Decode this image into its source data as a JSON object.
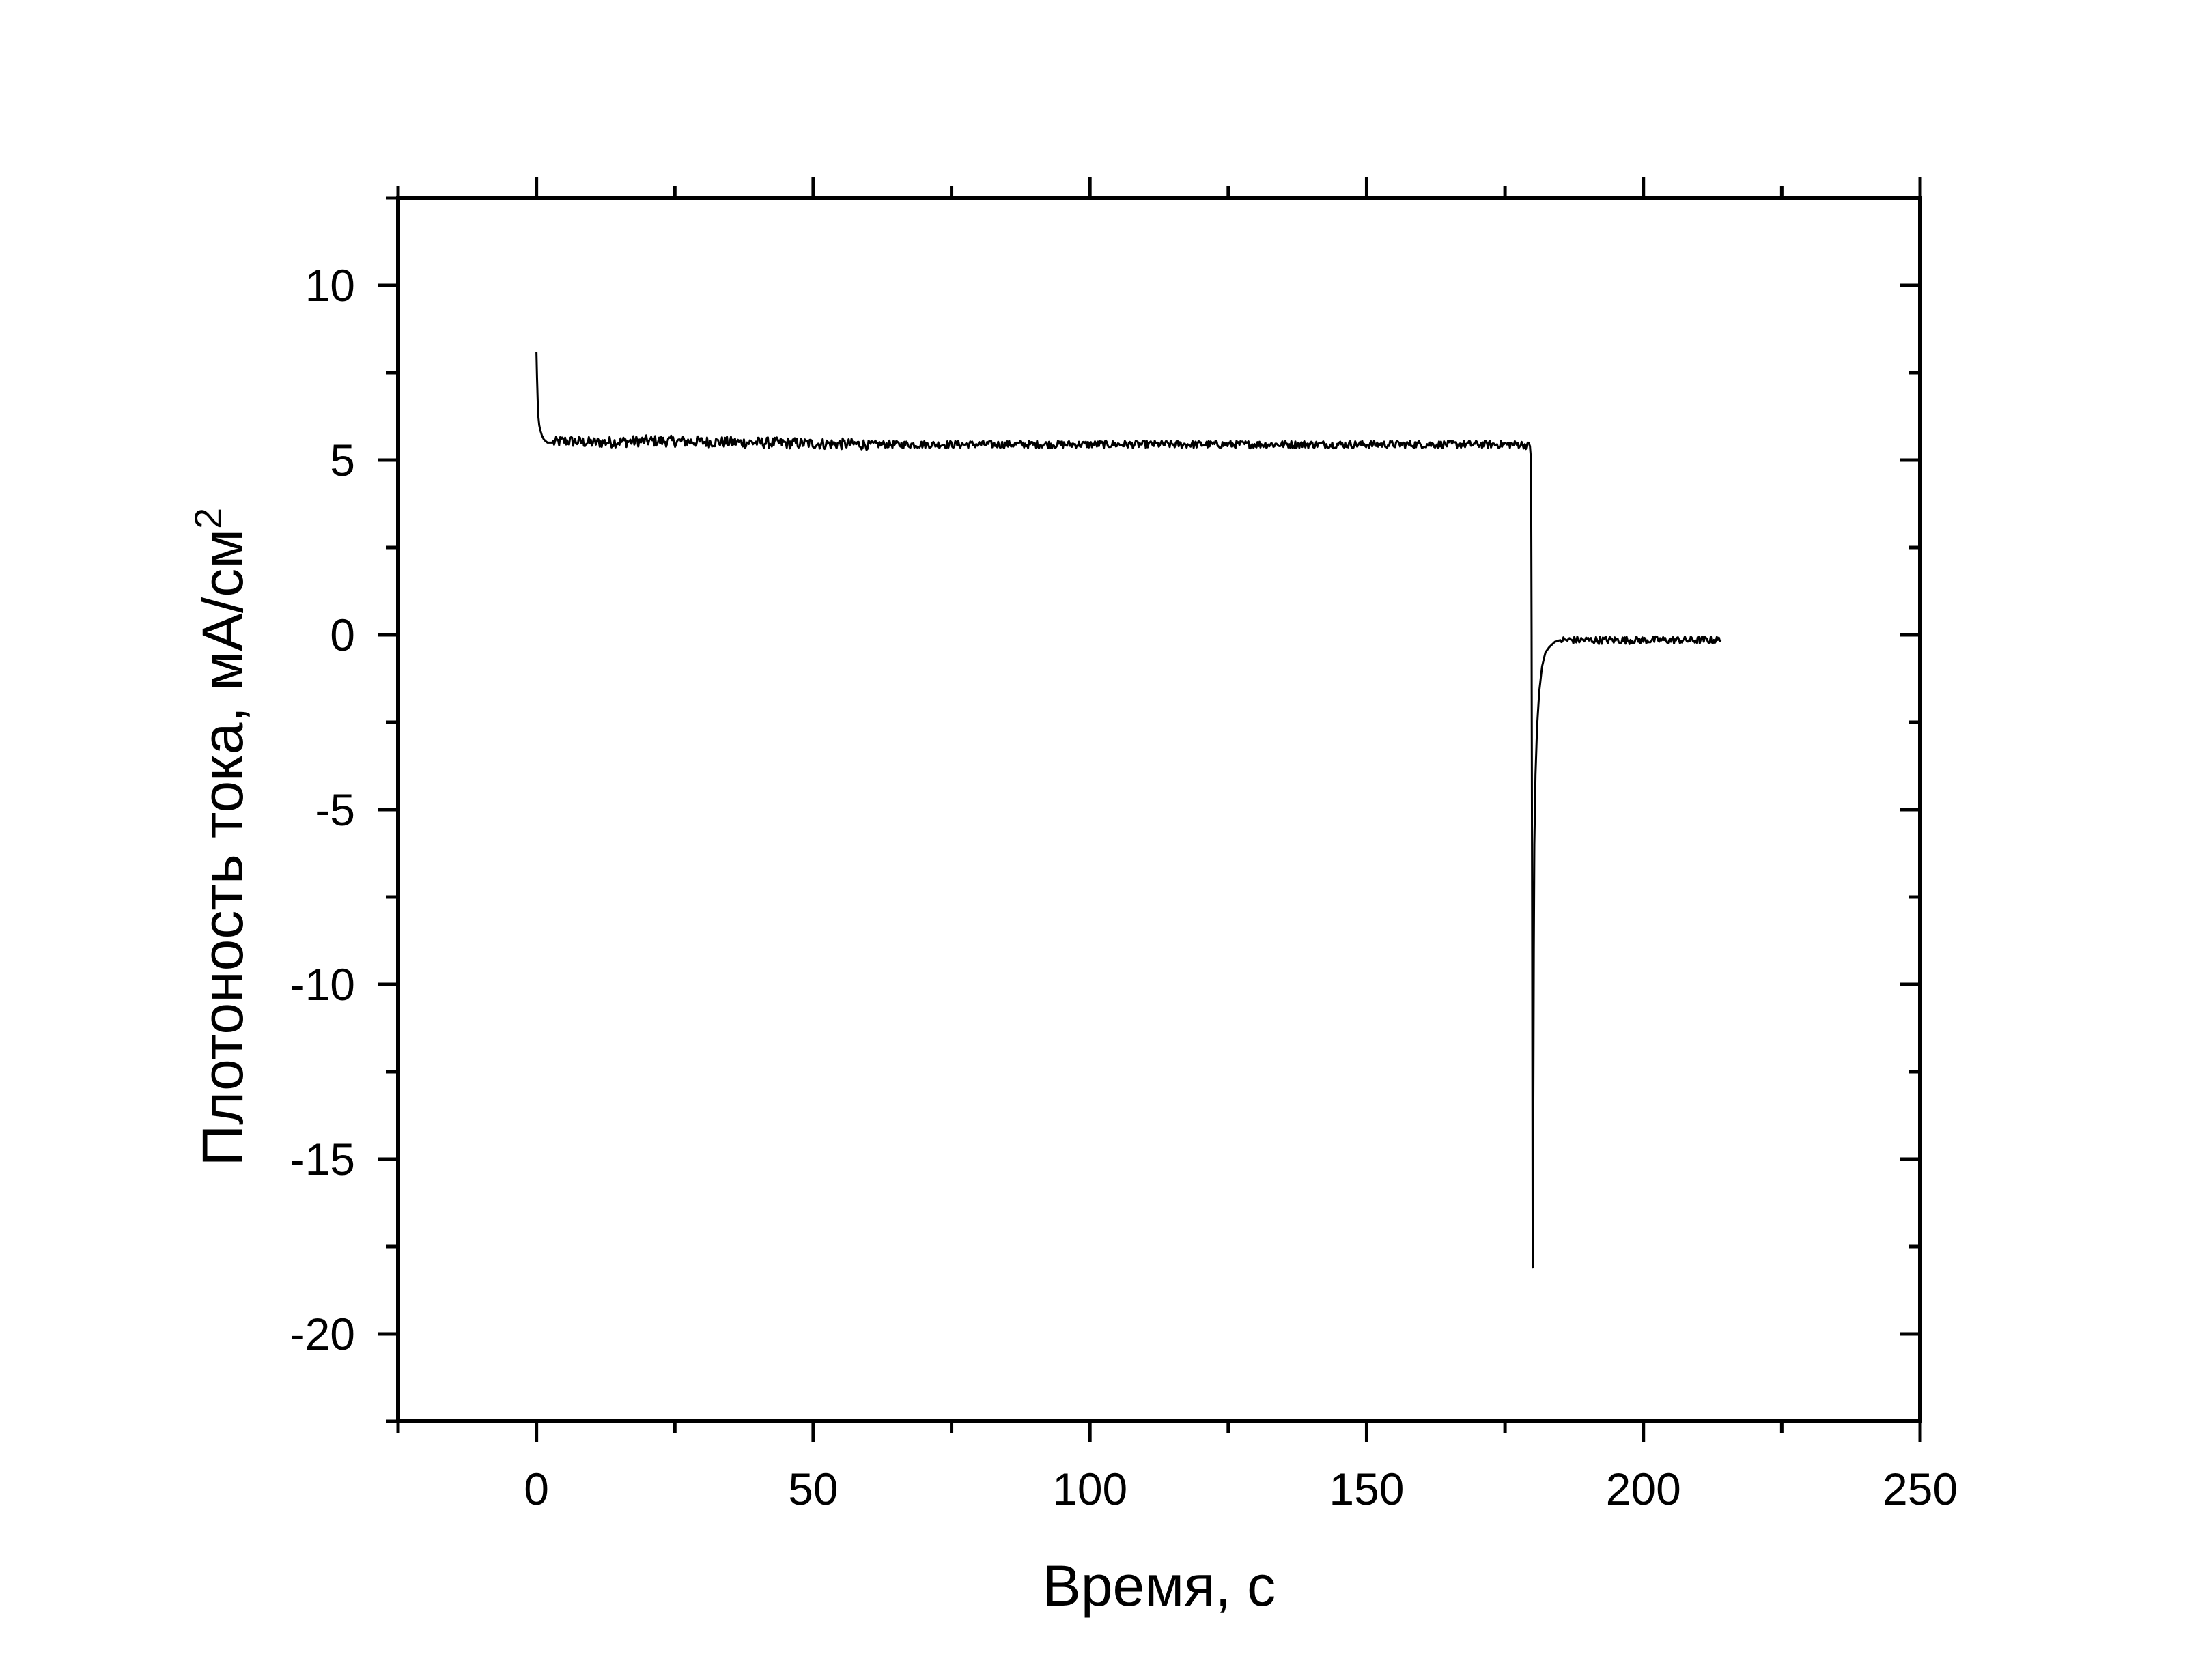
{
  "chart_data": {
    "type": "line",
    "xlabel": "Время, с",
    "ylabel_main": "Плотоность тока, мА/см",
    "ylabel_sup": "2",
    "xlim": [
      -25,
      250
    ],
    "ylim": [
      -22.5,
      12.5
    ],
    "x_major_ticks": [
      0,
      50,
      100,
      150,
      200,
      250
    ],
    "x_tick_labels": [
      "0",
      "50",
      "100",
      "150",
      "200",
      "250"
    ],
    "x_minor_step": 25,
    "y_major_ticks": [
      10,
      5,
      0,
      -5,
      -10,
      -15,
      -20
    ],
    "y_tick_labels": [
      "10",
      "5",
      "0",
      "-5",
      "-10",
      "-15",
      "-20"
    ],
    "y_minor_step": 2.5,
    "grid": false,
    "legend": "none",
    "line_color": "#000000",
    "series": [
      {
        "x": [
          0,
          0.1,
          0.2,
          0.3,
          0.5,
          0.7,
          1.0,
          1.3,
          1.6,
          2.0,
          3.0,
          5,
          10,
          20,
          40,
          60,
          80,
          100,
          120,
          140,
          160,
          175,
          178,
          179.5,
          179.7,
          179.8,
          179.9,
          180.0,
          180.1,
          180.2,
          180.3,
          180.5,
          180.8,
          181.2,
          181.7,
          182.3,
          183.0,
          184.0,
          185.0,
          187,
          190,
          195,
          200,
          205,
          210,
          214
        ],
        "y": [
          8.1,
          7.4,
          6.8,
          6.3,
          6.0,
          5.85,
          5.7,
          5.6,
          5.55,
          5.5,
          5.5,
          5.55,
          5.5,
          5.55,
          5.5,
          5.45,
          5.45,
          5.45,
          5.45,
          5.45,
          5.45,
          5.45,
          5.45,
          5.4,
          5.0,
          0,
          -8,
          -18.1,
          -14,
          -9,
          -6,
          -4,
          -2.6,
          -1.6,
          -0.9,
          -0.5,
          -0.35,
          -0.2,
          -0.15,
          -0.15,
          -0.15,
          -0.15,
          -0.15,
          -0.15,
          -0.15,
          -0.15
        ]
      }
    ]
  }
}
